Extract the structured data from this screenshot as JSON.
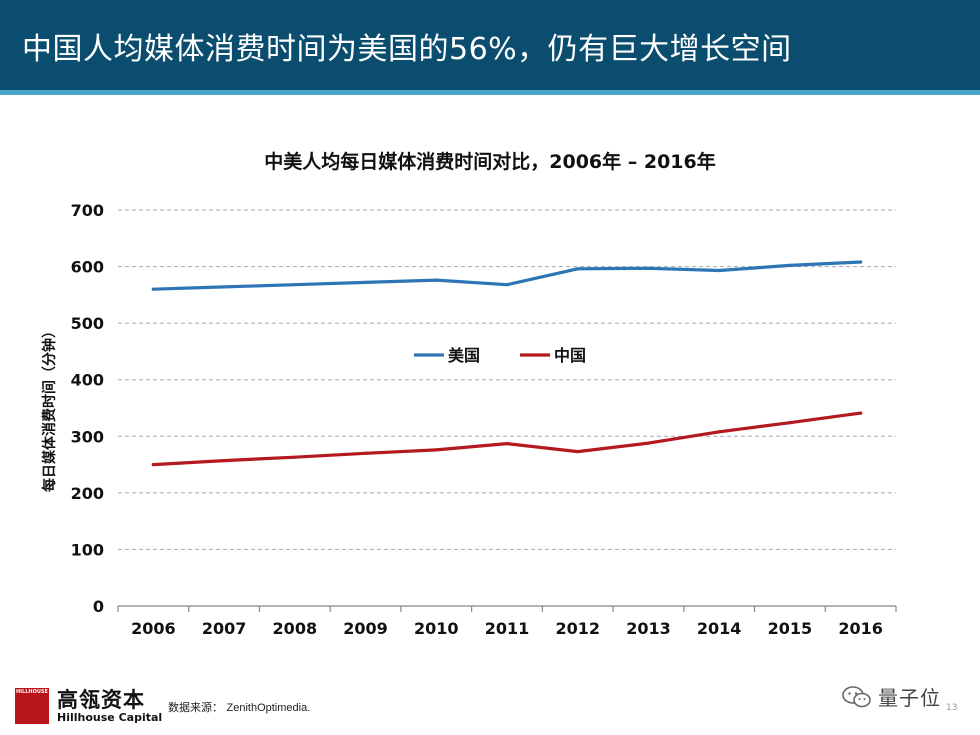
{
  "slide": {
    "title": "中国人均媒体消费时间为美国的56%，仍有巨大增长空间",
    "page_number": "13"
  },
  "footer": {
    "logo_mark_text": "HILLHOUSE",
    "brand_cn": "高瓴资本",
    "brand_en": "Hillhouse Capital",
    "source_label": "数据来源：",
    "source_name": "ZenithOptimedia."
  },
  "watermark": {
    "icon": "wechat-icon",
    "text": "量子位"
  },
  "chart_data": {
    "type": "line",
    "title": "中美人均每日媒体消费时间对比，2006年 – 2016年",
    "ylabel": "每日媒体消费时间（分钟）",
    "xlabel": "",
    "categories": [
      "2006",
      "2007",
      "2008",
      "2009",
      "2010",
      "2011",
      "2012",
      "2013",
      "2014",
      "2015",
      "2016"
    ],
    "ylim": [
      0,
      700
    ],
    "yticks": [
      0,
      100,
      200,
      300,
      400,
      500,
      600,
      700
    ],
    "grid": true,
    "legend_position": "center",
    "series": [
      {
        "name": "美国",
        "color": "#2e75b6",
        "values": [
          560,
          564,
          568,
          572,
          576,
          568,
          596,
          597,
          593,
          602,
          608
        ]
      },
      {
        "name": "中国",
        "color": "#b3191f",
        "values": [
          250,
          257,
          263,
          270,
          276,
          287,
          273,
          288,
          308,
          324,
          341
        ]
      }
    ]
  }
}
